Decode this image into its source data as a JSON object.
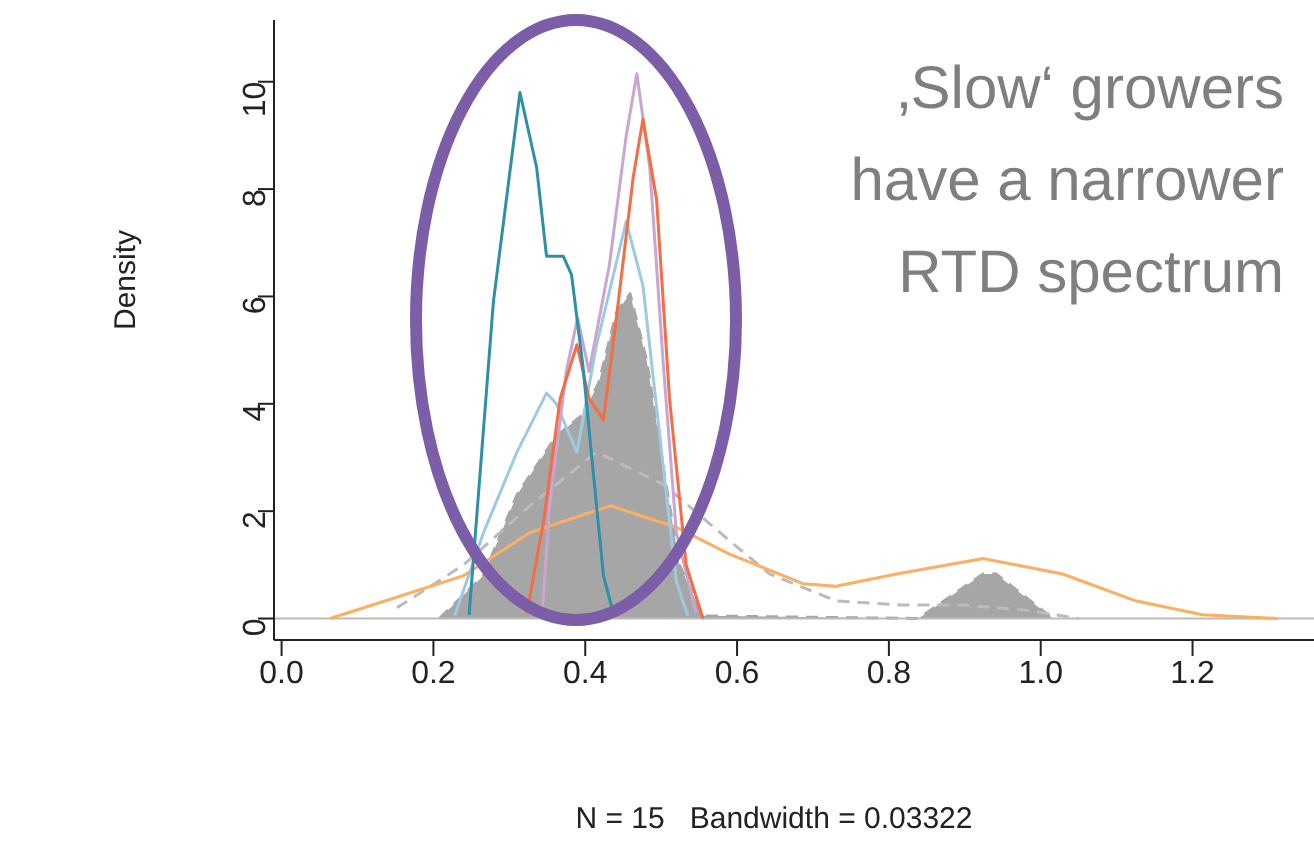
{
  "chart_data": {
    "type": "line",
    "xlabel": "N = 15   Bandwidth = 0.03322",
    "ylabel": "Density",
    "xlim": [
      -0.01,
      1.36
    ],
    "ylim": [
      -0.4,
      11.15
    ],
    "xticks": [
      {
        "value": 0,
        "label": "0.0"
      },
      {
        "value": 0.2,
        "label": "0.2"
      },
      {
        "value": 0.4,
        "label": "0.4"
      },
      {
        "value": 0.6,
        "label": "0.6"
      },
      {
        "value": 0.8,
        "label": "0.8"
      },
      {
        "value": 1,
        "label": "1.0"
      },
      {
        "value": 1.2,
        "label": "1.2"
      }
    ],
    "yticks": [
      0,
      2,
      4,
      6,
      8,
      10
    ],
    "marker": "none",
    "ref_lines": [
      {
        "axis": "y",
        "value": 0,
        "color": "#bbbbbb"
      }
    ],
    "annotations": [
      "‚Slow‘ growers",
      "have a narrower",
      "RTD spectrum"
    ],
    "series": [
      {
        "type": "area",
        "color": "#a6a6a6",
        "line_style": "dashed",
        "x": [
          0.208,
          0.266,
          0.31,
          0.362,
          0.397,
          0.418,
          0.441,
          0.459,
          0.481,
          0.503,
          0.524,
          0.555,
          0.839,
          0.924,
          0.941,
          1.016
        ],
        "values": [
          0,
          0.8,
          2.3,
          3.4,
          3.8,
          4.4,
          5.7,
          6.05,
          4.8,
          2.8,
          1.0,
          0.05,
          0,
          0.83,
          0.83,
          0
        ]
      },
      {
        "color": "#bbbbbb",
        "line_style": "dashed",
        "x": [
          0.152,
          0.24,
          0.327,
          0.415,
          0.503,
          0.59,
          0.643,
          0.73,
          0.818,
          0.9,
          0.985,
          1.05
        ],
        "values": [
          0.2,
          1.0,
          2.1,
          3.1,
          2.5,
          1.45,
          0.83,
          0.33,
          0.25,
          0.25,
          0.15,
          0
        ]
      },
      {
        "color": "#fdae61",
        "x": [
          0.064,
          0.24,
          0.327,
          0.433,
          0.52,
          0.59,
          0.687,
          0.73,
          0.81,
          0.924,
          1.029,
          1.125,
          1.213,
          1.313
        ],
        "values": [
          0,
          0.8,
          1.6,
          2.1,
          1.7,
          1.2,
          0.65,
          0.6,
          0.83,
          1.12,
          0.83,
          0.33,
          0.07,
          0
        ]
      },
      {
        "color": "#9ecae1",
        "x": [
          0.228,
          0.266,
          0.31,
          0.349,
          0.362,
          0.389,
          0.415,
          0.454,
          0.476,
          0.503,
          0.52,
          0.535
        ],
        "values": [
          0.05,
          1.6,
          3.1,
          4.2,
          4.0,
          3.1,
          5.1,
          7.4,
          6.2,
          2.8,
          0.7,
          0.05
        ]
      },
      {
        "color": "#c9a6d1",
        "x": [
          0.343,
          0.353,
          0.375,
          0.39,
          0.405,
          0.432,
          0.454,
          0.468,
          0.485,
          0.503,
          0.52,
          0.546
        ],
        "values": [
          0,
          2.1,
          4.6,
          5.6,
          4.6,
          6.6,
          9.0,
          10.15,
          8.4,
          4.7,
          1.6,
          0.1
        ]
      },
      {
        "color": "#f46d43",
        "x": [
          0.323,
          0.345,
          0.367,
          0.389,
          0.405,
          0.424,
          0.441,
          0.463,
          0.476,
          0.494,
          0.511,
          0.533,
          0.555
        ],
        "values": [
          0.1,
          1.8,
          4.1,
          5.1,
          4.1,
          3.7,
          5.6,
          8.2,
          9.3,
          7.8,
          4.1,
          1.0,
          0
        ]
      },
      {
        "color": "#2f8fa8",
        "x": [
          0.247,
          0.279,
          0.314,
          0.336,
          0.349,
          0.371,
          0.382,
          0.397,
          0.41,
          0.424,
          0.437
        ],
        "values": [
          0.07,
          5.9,
          9.8,
          8.4,
          6.75,
          6.75,
          6.4,
          4.7,
          2.8,
          0.8,
          0.1
        ]
      }
    ]
  }
}
